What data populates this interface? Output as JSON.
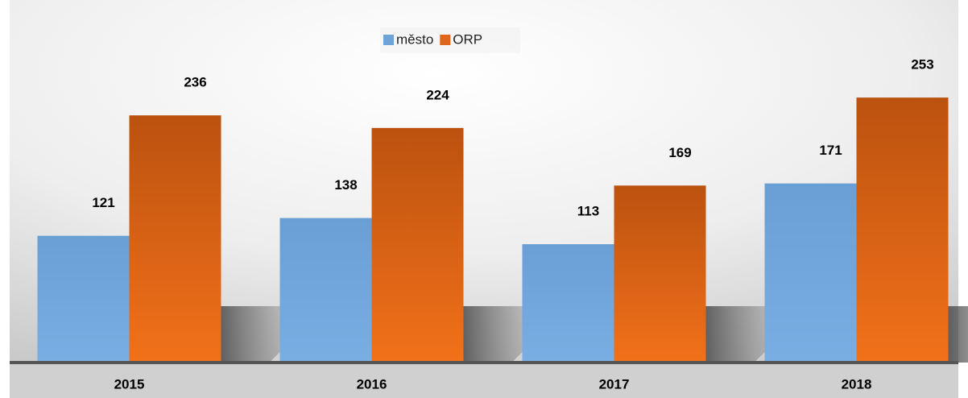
{
  "chart_data": {
    "type": "bar",
    "categories": [
      "2015",
      "2016",
      "2017",
      "2018"
    ],
    "series": [
      {
        "name": "město",
        "color": "#6fa3d8",
        "values": [
          121,
          138,
          113,
          171
        ]
      },
      {
        "name": "ORP",
        "color": "#e0661a",
        "values": [
          236,
          224,
          169,
          253
        ]
      }
    ],
    "legend": "top"
  }
}
